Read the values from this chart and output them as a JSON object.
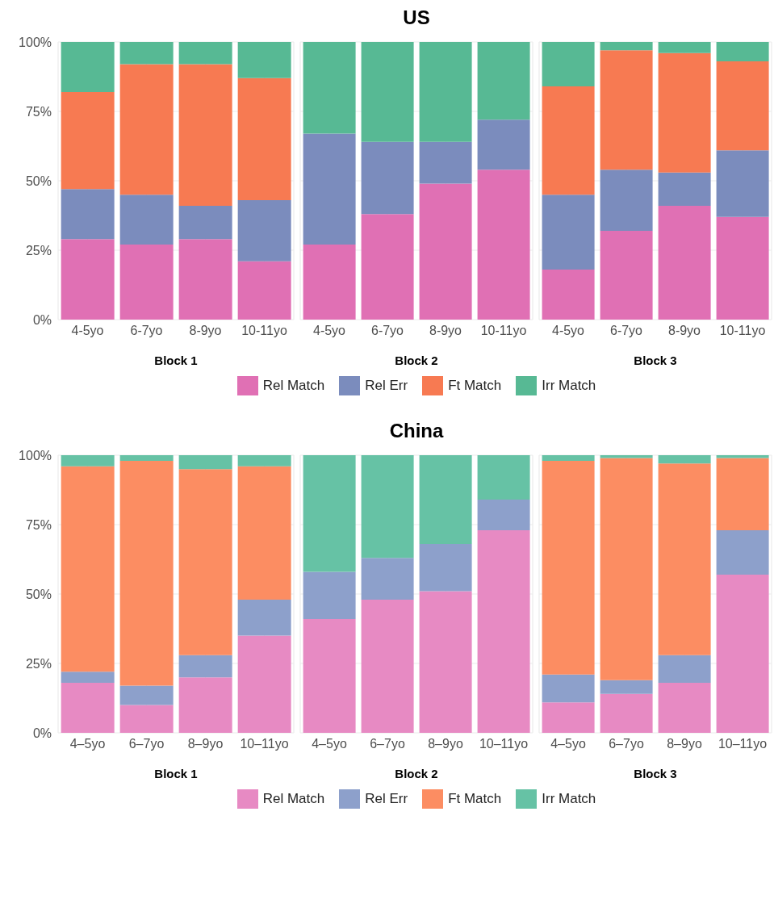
{
  "chart_data": [
    {
      "type": "bar",
      "xlabel": "Block 1",
      "categories": [
        "4-5yo",
        "6-7yo",
        "8-9yo",
        "10-11yo"
      ],
      "stacked": true,
      "ylim": [
        0,
        100
      ],
      "yticks": [
        {
          "value": 0,
          "label": "0%"
        },
        {
          "value": 25,
          "label": "25%"
        },
        {
          "value": 50,
          "label": "50%"
        },
        {
          "value": 75,
          "label": "75%"
        },
        {
          "value": 100,
          "label": "100%"
        }
      ],
      "grid": true,
      "series": [
        {
          "color": "#e070b4",
          "values": [
            29,
            27,
            29,
            21
          ]
        },
        {
          "color": "#7b8cbd",
          "values": [
            18,
            18,
            12,
            22
          ]
        },
        {
          "color": "#f77a52",
          "values": [
            35,
            47,
            51,
            44
          ]
        },
        {
          "color": "#57b994",
          "values": [
            18,
            8,
            8,
            13
          ]
        }
      ]
    },
    {
      "type": "bar",
      "title": "US",
      "xlabel": "Block 2",
      "categories": [
        "4-5yo",
        "6-7yo",
        "8-9yo",
        "10-11yo"
      ],
      "stacked": true,
      "ylim": [
        0,
        100
      ],
      "yticks": [
        0,
        25,
        50,
        75,
        100
      ],
      "grid": true,
      "tick_labels": "x",
      "legend": "bottom",
      "series": [
        {
          "name": "Rel Match",
          "color": "#e070b4",
          "values": [
            27,
            38,
            49,
            54
          ]
        },
        {
          "name": "Rel Err",
          "color": "#7b8cbd",
          "values": [
            40,
            26,
            15,
            18
          ]
        },
        {
          "name": "Ft Match",
          "color": "#f77a52",
          "values": [
            0,
            0,
            0,
            0
          ]
        },
        {
          "name": "Irr Match",
          "color": "#57b994",
          "values": [
            33,
            36,
            36,
            28
          ]
        }
      ]
    },
    {
      "type": "bar",
      "xlabel": "Block 3",
      "categories": [
        "4-5yo",
        "6-7yo",
        "8-9yo",
        "10-11yo"
      ],
      "stacked": true,
      "ylim": [
        0,
        100
      ],
      "yticks": [
        0,
        25,
        50,
        75,
        100
      ],
      "grid": true,
      "tick_labels": "x",
      "series": [
        {
          "color": "#e070b4",
          "values": [
            18,
            32,
            41,
            37
          ]
        },
        {
          "color": "#7b8cbd",
          "values": [
            27,
            22,
            12,
            24
          ]
        },
        {
          "color": "#f77a52",
          "values": [
            39,
            43,
            43,
            32
          ]
        },
        {
          "color": "#57b994",
          "values": [
            16,
            3,
            4,
            7
          ]
        }
      ]
    },
    {
      "type": "bar",
      "xlabel": "Block 1",
      "categories": [
        "4‒5yo",
        "6‒7yo",
        "8‒9yo",
        "10‒11yo"
      ],
      "stacked": true,
      "ylim": [
        0,
        100
      ],
      "yticks": [
        {
          "value": 0,
          "label": "0%"
        },
        {
          "value": 25,
          "label": "25%"
        },
        {
          "value": 50,
          "label": "50%"
        },
        {
          "value": 75,
          "label": "75%"
        },
        {
          "value": 100,
          "label": "100%"
        }
      ],
      "grid": true,
      "series": [
        {
          "color": "#e78ac3",
          "values": [
            18,
            10,
            20,
            35
          ]
        },
        {
          "color": "#8da0cb",
          "values": [
            4,
            7,
            8,
            13
          ]
        },
        {
          "color": "#fc8d62",
          "values": [
            74,
            81,
            67,
            48
          ]
        },
        {
          "color": "#66c2a5",
          "values": [
            4,
            2,
            5,
            4
          ]
        }
      ]
    },
    {
      "type": "bar",
      "title": "China",
      "xlabel": "Block 2",
      "categories": [
        "4‒5yo",
        "6‒7yo",
        "8‒9yo",
        "10‒11yo"
      ],
      "stacked": true,
      "ylim": [
        0,
        100
      ],
      "yticks": [
        0,
        25,
        50,
        75,
        100
      ],
      "grid": true,
      "tick_labels": "x",
      "legend": "bottom",
      "series": [
        {
          "name": "Rel Match",
          "color": "#e78ac3",
          "values": [
            41,
            48,
            51,
            73
          ]
        },
        {
          "name": "Rel Err",
          "color": "#8da0cb",
          "values": [
            17,
            15,
            17,
            11
          ]
        },
        {
          "name": "Ft Match",
          "color": "#fc8d62",
          "values": [
            0,
            0,
            0,
            0
          ]
        },
        {
          "name": "Irr Match",
          "color": "#66c2a5",
          "values": [
            42,
            37,
            32,
            16
          ]
        }
      ]
    },
    {
      "type": "bar",
      "xlabel": "Block 3",
      "categories": [
        "4‒5yo",
        "6‒7yo",
        "8‒9yo",
        "10‒11yo"
      ],
      "stacked": true,
      "ylim": [
        0,
        100
      ],
      "yticks": [
        0,
        25,
        50,
        75,
        100
      ],
      "grid": true,
      "tick_labels": "x",
      "series": [
        {
          "color": "#e78ac3",
          "values": [
            11,
            14,
            18,
            57
          ]
        },
        {
          "color": "#8da0cb",
          "values": [
            10,
            5,
            10,
            16
          ]
        },
        {
          "color": "#fc8d62",
          "values": [
            77,
            80,
            69,
            26
          ]
        },
        {
          "color": "#66c2a5",
          "values": [
            2,
            1,
            3,
            1
          ]
        }
      ]
    }
  ]
}
